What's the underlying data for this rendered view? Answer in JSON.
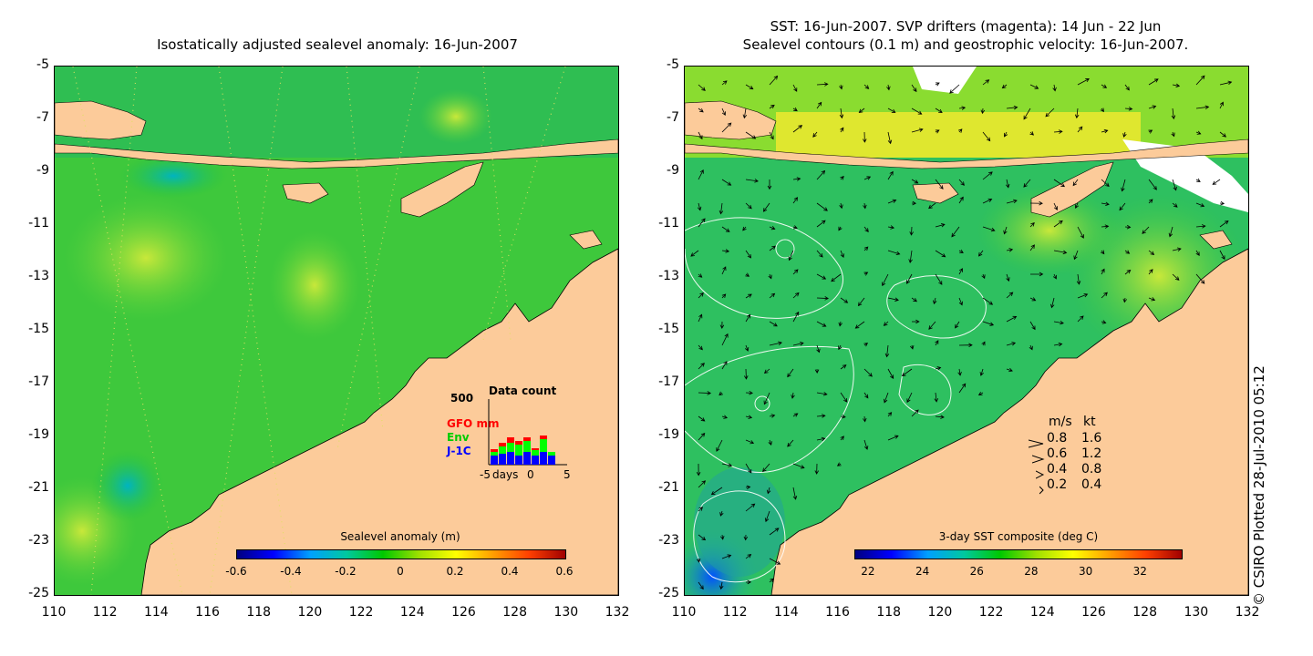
{
  "left_panel": {
    "title": "Isostatically adjusted sealevel anomaly: 16-Jun-2007",
    "colorbar": {
      "title": "Sealevel anomaly (m)",
      "ticks": [
        "-0.6",
        "-0.4",
        "-0.2",
        "0",
        "0.2",
        "0.4",
        "0.6"
      ],
      "range": [
        -0.6,
        0.6
      ],
      "colors": [
        "#000080",
        "#0000ff",
        "#00a0ff",
        "#00c8a0",
        "#00c800",
        "#a0e000",
        "#ffff00",
        "#ffa000",
        "#ff4000",
        "#a00000"
      ]
    },
    "data_count": {
      "title": "Data count",
      "max_label": "500",
      "xlabel": "days",
      "x_ticks": [
        "-5",
        "0",
        "5"
      ],
      "satellites": [
        {
          "name": "GFO",
          "unit": "mm",
          "color": "#ff0000"
        },
        {
          "name": "Env",
          "color": "#00ff00"
        },
        {
          "name": "J-1C",
          "color": "#0000ff"
        }
      ]
    }
  },
  "right_panel": {
    "title_line1": "SST: 16-Jun-2007. SVP drifters (magenta): 14 Jun - 22 Jun",
    "title_line2": "Sealevel contours (0.1 m) and geostrophic velocity: 16-Jun-2007.",
    "colorbar": {
      "title": "3-day SST composite (deg C)",
      "ticks": [
        "22",
        "24",
        "26",
        "28",
        "30",
        "32"
      ],
      "range": [
        21.5,
        33.5
      ],
      "colors": [
        "#000080",
        "#0000ff",
        "#00a0ff",
        "#00c8a0",
        "#00c800",
        "#a0e000",
        "#ffff00",
        "#ffa000",
        "#ff4000",
        "#a00000"
      ]
    },
    "velocity_legend": {
      "header_ms": "m/s",
      "header_kt": "kt",
      "rows": [
        {
          "ms": "0.8",
          "kt": "1.6"
        },
        {
          "ms": "0.6",
          "kt": "1.2"
        },
        {
          "ms": "0.4",
          "kt": "0.8"
        },
        {
          "ms": "0.2",
          "kt": "0.4"
        }
      ]
    }
  },
  "axes": {
    "y_ticks": [
      "-5",
      "-7",
      "-9",
      "-11",
      "-13",
      "-15",
      "-17",
      "-19",
      "-21",
      "-23",
      "-25"
    ],
    "x_ticks": [
      "110",
      "112",
      "114",
      "116",
      "118",
      "120",
      "122",
      "124",
      "126",
      "128",
      "130",
      "132"
    ],
    "lon_range": [
      110,
      132
    ],
    "lat_range": [
      -25,
      -5
    ]
  },
  "colors": {
    "land": "#fccb9a",
    "ocean_base": "#22c23a",
    "island_land": "#fccb9a"
  },
  "credit": "© CSIRO Plotted 28-Jul-2010 05:12"
}
